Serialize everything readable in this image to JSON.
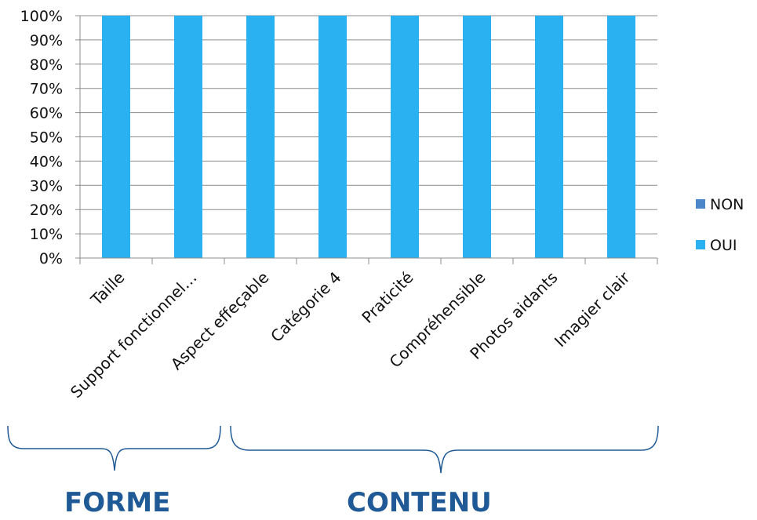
{
  "chart_data": {
    "type": "bar",
    "stacked": true,
    "percent": true,
    "categories": [
      "Taille",
      "Support fonctionnel…",
      "Aspect effeçable",
      "Catégorie 4",
      "Praticité",
      "Compréhensible",
      "Photos aidants",
      "Imagier clair"
    ],
    "series": [
      {
        "name": "NON",
        "color": "#4a86c8",
        "values": [
          0,
          0,
          0,
          0,
          0,
          0,
          0,
          0
        ]
      },
      {
        "name": "OUI",
        "color": "#29b1f1",
        "values": [
          100,
          100,
          100,
          100,
          100,
          100,
          100,
          100
        ]
      }
    ],
    "ylim": [
      0,
      100
    ],
    "yticks": [
      "0%",
      "10%",
      "20%",
      "30%",
      "40%",
      "50%",
      "60%",
      "70%",
      "80%",
      "90%",
      "100%"
    ],
    "grid": true,
    "legend_position": "right"
  },
  "groups": [
    {
      "label": "FORME"
    },
    {
      "label": "CONTENU"
    }
  ],
  "colors": {
    "group_text": "#1f5a96",
    "brace": "#1f5a96",
    "grid": "#8c8c8c"
  }
}
